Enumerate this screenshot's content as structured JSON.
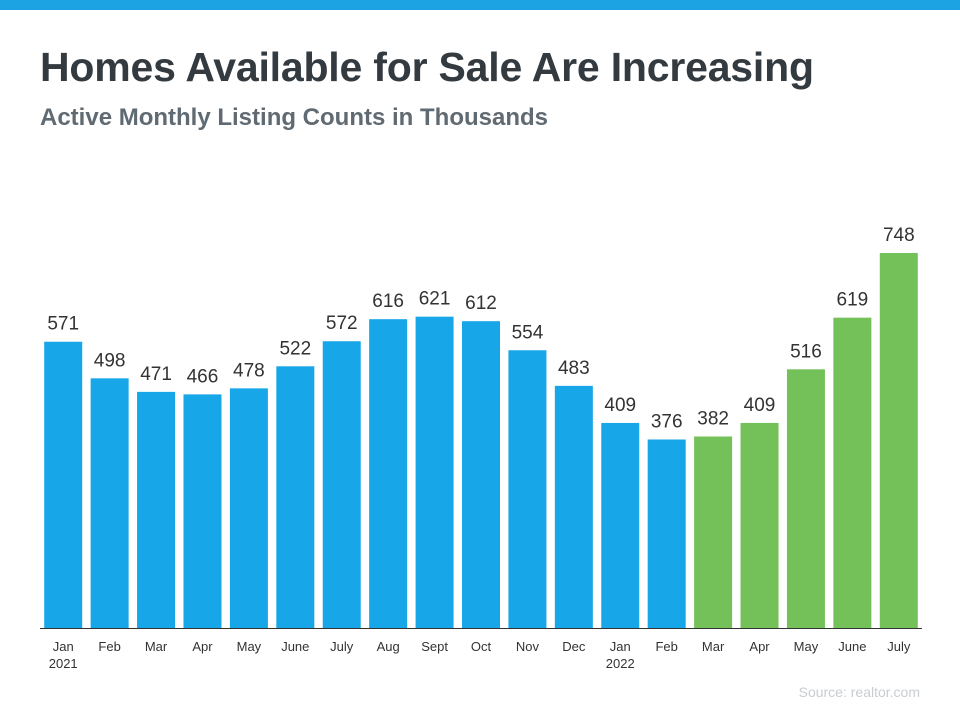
{
  "header": {
    "title": "Homes Available for Sale Are Increasing",
    "subtitle": "Active Monthly Listing Counts in Thousands"
  },
  "footer": {
    "source": "Source: realtor.com"
  },
  "colors": {
    "top_bar": "#1ba3e3",
    "blue_bar": "#17a6e8",
    "green_bar": "#74c15a",
    "axis": "#333333",
    "value_label": "#333333",
    "tick_label": "#333333"
  },
  "chart_data": {
    "type": "bar",
    "title": "Homes Available for Sale Are Increasing",
    "subtitle": "Active Monthly Listing Counts in Thousands",
    "xlabel": "",
    "ylabel": "",
    "ylim": [
      0,
      760
    ],
    "grid": false,
    "categories": [
      {
        "month": "Jan",
        "year": "2021"
      },
      {
        "month": "Feb",
        "year": ""
      },
      {
        "month": "Mar",
        "year": ""
      },
      {
        "month": "Apr",
        "year": ""
      },
      {
        "month": "May",
        "year": ""
      },
      {
        "month": "June",
        "year": ""
      },
      {
        "month": "July",
        "year": ""
      },
      {
        "month": "Aug",
        "year": ""
      },
      {
        "month": "Sept",
        "year": ""
      },
      {
        "month": "Oct",
        "year": ""
      },
      {
        "month": "Nov",
        "year": ""
      },
      {
        "month": "Dec",
        "year": ""
      },
      {
        "month": "Jan",
        "year": "2022"
      },
      {
        "month": "Feb",
        "year": ""
      },
      {
        "month": "Mar",
        "year": ""
      },
      {
        "month": "Apr",
        "year": ""
      },
      {
        "month": "May",
        "year": ""
      },
      {
        "month": "June",
        "year": ""
      },
      {
        "month": "July",
        "year": ""
      }
    ],
    "values": [
      571,
      498,
      471,
      466,
      478,
      522,
      572,
      616,
      621,
      612,
      554,
      483,
      409,
      376,
      382,
      409,
      516,
      619,
      748
    ],
    "bar_colors": [
      "blue",
      "blue",
      "blue",
      "blue",
      "blue",
      "blue",
      "blue",
      "blue",
      "blue",
      "blue",
      "blue",
      "blue",
      "blue",
      "blue",
      "green",
      "green",
      "green",
      "green",
      "green"
    ]
  }
}
